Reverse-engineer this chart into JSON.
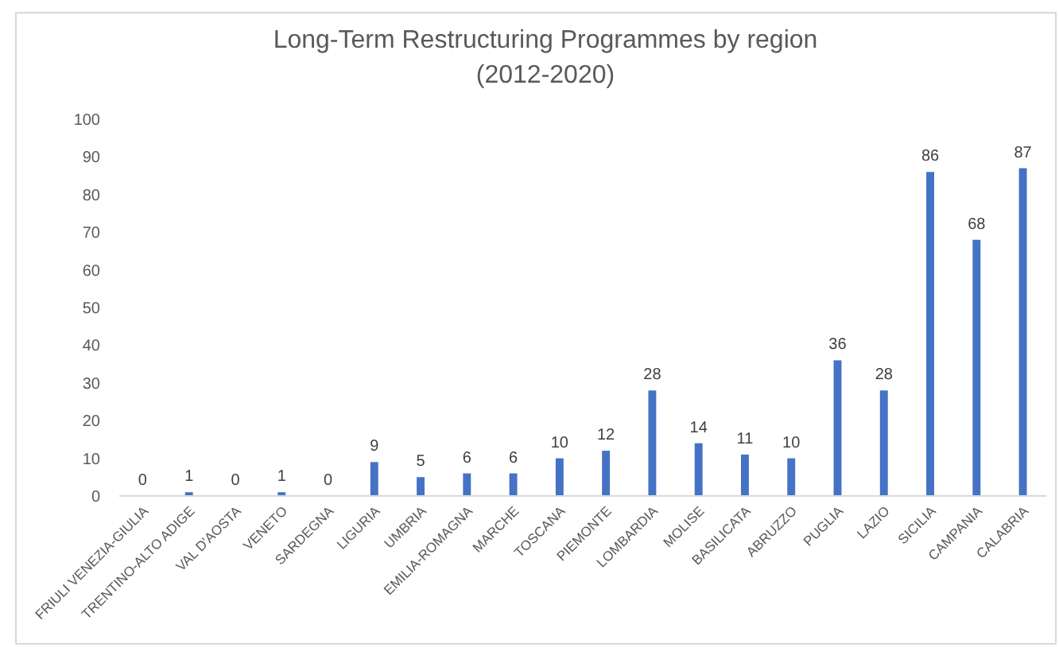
{
  "chart_data": {
    "type": "bar",
    "title": "Long-Term Restructuring Programmes by region\n(2012-2020)",
    "categories": [
      "FRIULI VENEZIA-GIULIA",
      "TRENTINO-ALTO ADIGE",
      "VAL D'AOSTA",
      "VENETO",
      "SARDEGNA",
      "LIGURIA",
      "UMBRIA",
      "EMILIA-ROMAGNA",
      "MARCHE",
      "TOSCANA",
      "PIEMONTE",
      "LOMBARDIA",
      "MOLISE",
      "BASILICATA",
      "ABRUZZO",
      "PUGLIA",
      "LAZIO",
      "SICILIA",
      "CAMPANIA",
      "CALABRIA"
    ],
    "values": [
      0,
      1,
      0,
      1,
      0,
      9,
      5,
      6,
      6,
      10,
      12,
      28,
      14,
      11,
      10,
      36,
      28,
      86,
      68,
      87
    ],
    "color": "#4472c4",
    "ylim": [
      0,
      100
    ],
    "yticks": [
      0,
      10,
      20,
      30,
      40,
      50,
      60,
      70,
      80,
      90,
      100
    ],
    "data_labels": true
  }
}
